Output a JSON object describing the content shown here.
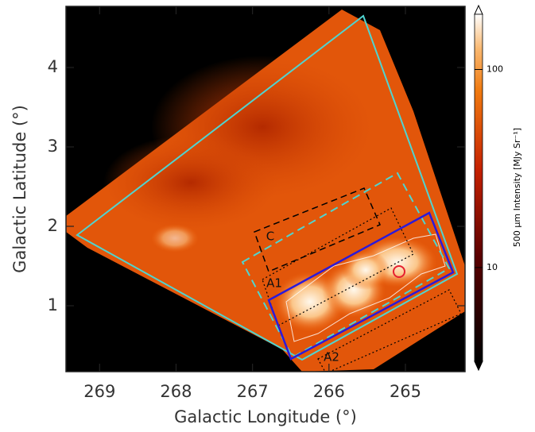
{
  "chart_data": {
    "type": "image",
    "xlabel": "Galactic Longitude (°)",
    "ylabel": "Galactic Latitude (°)",
    "xlim": [
      269.44,
      264.22
    ],
    "xticks": [
      269,
      268,
      267,
      266,
      265
    ],
    "ylim": [
      0.17,
      4.77
    ],
    "yticks": [
      1,
      2,
      3,
      4
    ],
    "colorbar": {
      "label": "500 μm Intensity [MJy Sr⁻¹]",
      "lim": [
        3.36,
        190
      ],
      "ticks": [
        10,
        100
      ],
      "log": true
    },
    "annotations": [
      "C",
      "A1",
      "A2"
    ]
  }
}
